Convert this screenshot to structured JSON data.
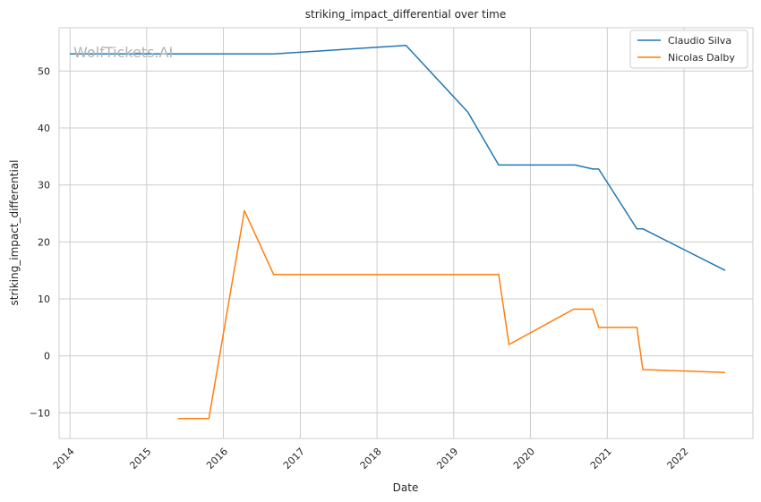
{
  "chart_data": {
    "type": "line",
    "title": "striking_impact_differential over time",
    "xlabel": "Date",
    "ylabel": "striking_impact_differential",
    "xlim": [
      "2013-11-10",
      "2022-11-25"
    ],
    "ylim": [
      -14.5,
      57.6
    ],
    "x_ticks": [
      "2014",
      "2015",
      "2016",
      "2017",
      "2018",
      "2019",
      "2020",
      "2021",
      "2022"
    ],
    "y_ticks": [
      -10,
      0,
      10,
      20,
      30,
      40,
      50
    ],
    "grid": true,
    "legend_position": "top-right",
    "watermark": "WolfTickets.AI",
    "series": [
      {
        "name": "Claudio Silva",
        "color": "#1f77b4",
        "points": [
          {
            "x": "2014-01-01",
            "y": 53.0
          },
          {
            "x": "2016-08-27",
            "y": 53.0
          },
          {
            "x": "2018-05-19",
            "y": 54.5
          },
          {
            "x": "2019-03-09",
            "y": 42.8
          },
          {
            "x": "2019-08-03",
            "y": 33.5
          },
          {
            "x": "2020-08-01",
            "y": 33.5
          },
          {
            "x": "2020-10-24",
            "y": 32.8
          },
          {
            "x": "2020-11-21",
            "y": 32.8
          },
          {
            "x": "2021-05-22",
            "y": 22.3
          },
          {
            "x": "2021-06-19",
            "y": 22.3
          },
          {
            "x": "2022-07-16",
            "y": 15.0
          }
        ]
      },
      {
        "name": "Nicolas Dalby",
        "color": "#ff7f0e",
        "points": [
          {
            "x": "2015-05-30",
            "y": -11.0
          },
          {
            "x": "2015-10-24",
            "y": -11.0
          },
          {
            "x": "2016-04-10",
            "y": 25.5
          },
          {
            "x": "2016-08-27",
            "y": 14.3
          },
          {
            "x": "2019-08-03",
            "y": 14.3
          },
          {
            "x": "2019-09-21",
            "y": 2.0
          },
          {
            "x": "2020-07-25",
            "y": 8.2
          },
          {
            "x": "2020-10-24",
            "y": 8.2
          },
          {
            "x": "2020-11-21",
            "y": 5.0
          },
          {
            "x": "2021-05-22",
            "y": 5.0
          },
          {
            "x": "2021-06-19",
            "y": -2.4
          },
          {
            "x": "2022-07-16",
            "y": -2.9
          }
        ]
      }
    ]
  }
}
